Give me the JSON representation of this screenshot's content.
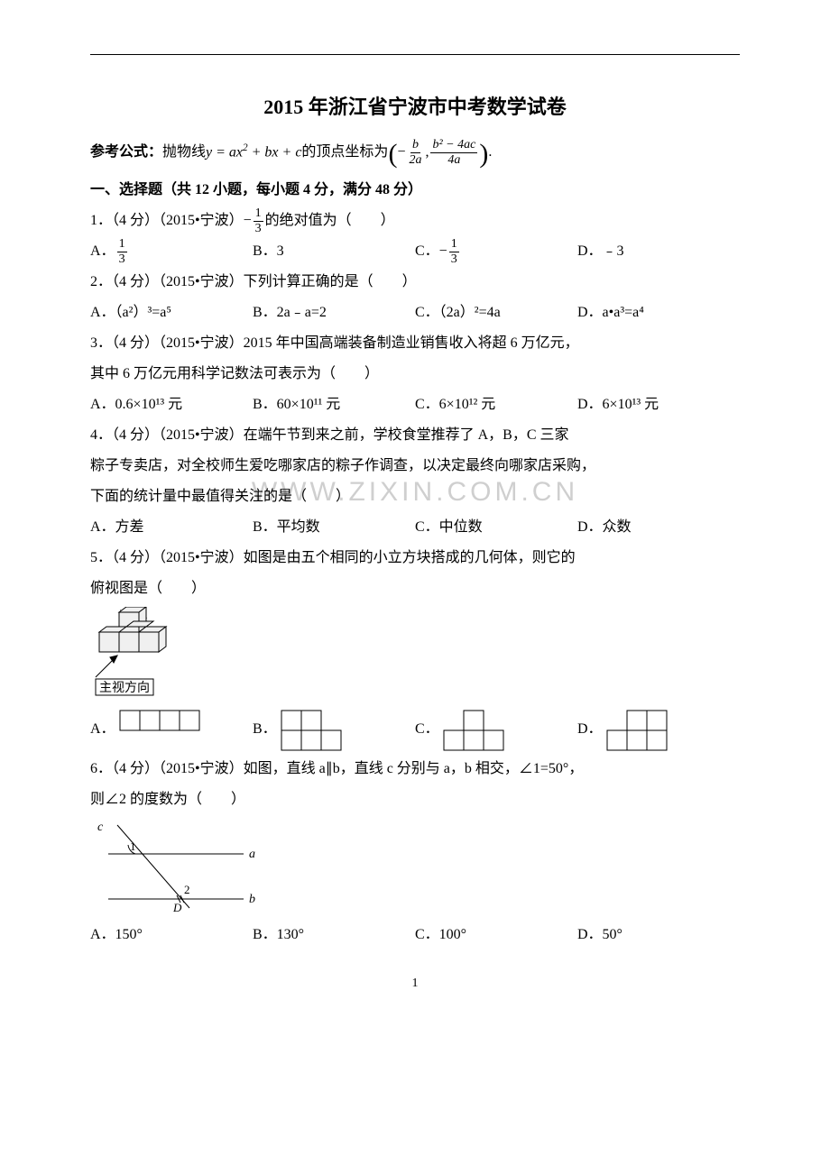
{
  "title": "2015 年浙江省宁波市中考数学试卷",
  "formula_prefix": "参考公式：",
  "formula_text1": "抛物线 ",
  "formula_eq1": "y = ax",
  "formula_eq1_sup": "2",
  "formula_eq2": " + bx + c",
  "formula_text2": " 的顶点坐标为",
  "vertex_num1": "b",
  "vertex_den1": "2a",
  "vertex_neg": "−",
  "vertex_comma": ",  ",
  "vertex_num2": "b² − 4ac",
  "vertex_den2": "4a",
  "formula_period": ".",
  "section1": "一、选择题（共 12 小题，每小题 4 分，满分 48 分）",
  "q1_stem_a": "1．（4 分）（2015•宁波）− ",
  "q1_frac_num": "1",
  "q1_frac_den": "3",
  "q1_stem_b": "的绝对值为（　　）",
  "q1A_label": "A．",
  "q1A_num": "1",
  "q1A_den": "3",
  "q1B": "B．3",
  "q1C_label": "C．− ",
  "q1C_num": "1",
  "q1C_den": "3",
  "q1D": "D．﹣3",
  "q2_stem": "2．（4 分）（2015•宁波）下列计算正确的是（　　）",
  "q2A": "A．（a²）³=a⁵",
  "q2B": "B．2a﹣a=2",
  "q2C": "C．（2a）²=4a",
  "q2D": "D．a•a³=a⁴",
  "q3_stem1": "3．（4 分）（2015•宁波）2015 年中国高端装备制造业销售收入将超 6 万亿元，",
  "q3_stem2": "其中 6 万亿元用科学记数法可表示为（　　）",
  "q3A": "A．0.6×10¹³ 元",
  "q3B": "B．60×10¹¹ 元",
  "q3C": "C．6×10¹² 元",
  "q3D": "D．6×10¹³ 元",
  "q4_stem1": "4．（4 分）（2015•宁波）在端午节到来之前，学校食堂推荐了 A，B，C 三家",
  "q4_stem2": "粽子专卖店，对全校师生爱吃哪家店的粽子作调查，以决定最终向哪家店采购，",
  "q4_stem3": "下面的统计量中最值得关注的是（　　）",
  "q4A": "A．方差",
  "q4B": "B．平均数",
  "q4C": "C．中位数",
  "q4D": "D．众数",
  "watermark_text": "WWW.ZIXIN.COM.CN",
  "q5_stem1": "5．（4 分）（2015•宁波）如图是由五个相同的小立方块搭成的几何体，则它的",
  "q5_stem2": "俯视图是（　　）",
  "q5_caption": "主视方向",
  "q5A": "A．",
  "q5B": "B．",
  "q5C": "C．",
  "q5D": "D．",
  "q6_stem1": "6．（4 分）（2015•宁波）如图，直线 a∥b，直线 c 分别与 a，b 相交，∠1=50°，",
  "q6_stem2": "则∠2 的度数为（　　）",
  "q6A": "A．150°",
  "q6B": "B．130°",
  "q6C": "C．100°",
  "q6D": "D．50°",
  "page_number": "1",
  "colors": {
    "text": "#000000",
    "bg": "#ffffff",
    "watermark": "#cfcfcf",
    "cube_fill": "#f0f0f0",
    "cube_stroke": "#000000",
    "option_fill": "#ffffff"
  },
  "q5_figure": {
    "cube_size": 22,
    "arrow_label": "主视方向"
  },
  "q5_options_grid": {
    "cell": 22,
    "A": [
      [
        0,
        0
      ],
      [
        1,
        0
      ],
      [
        2,
        0
      ],
      [
        3,
        0
      ]
    ],
    "B": [
      [
        0,
        0
      ],
      [
        1,
        0
      ],
      [
        0,
        1
      ],
      [
        1,
        1
      ],
      [
        2,
        1
      ]
    ],
    "C": [
      [
        1,
        0
      ],
      [
        0,
        1
      ],
      [
        1,
        1
      ],
      [
        2,
        1
      ]
    ],
    "D": [
      [
        1,
        0
      ],
      [
        2,
        0
      ],
      [
        0,
        1
      ],
      [
        1,
        1
      ],
      [
        2,
        1
      ]
    ]
  },
  "q6_figure": {
    "label_c": "c",
    "label_a": "a",
    "label_b": "b",
    "label_1": "1",
    "label_2": "2",
    "label_D": "D"
  }
}
